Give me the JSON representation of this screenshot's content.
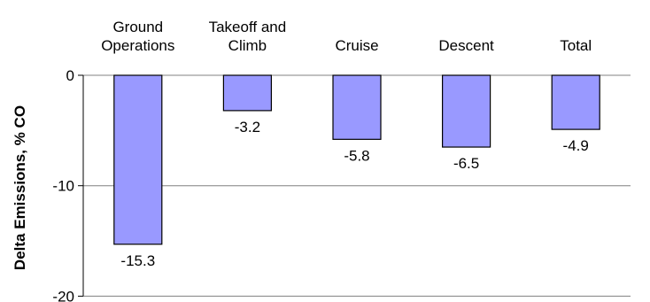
{
  "chart_data": {
    "type": "bar",
    "categories": [
      [
        "Ground",
        "Operations"
      ],
      [
        "Takeoff and",
        "Climb"
      ],
      [
        "Cruise"
      ],
      [
        "Descent"
      ],
      [
        "Total"
      ]
    ],
    "values": [
      -15.3,
      -3.2,
      -5.8,
      -6.5,
      -4.9
    ],
    "data_labels": [
      "-15.3",
      "-3.2",
      "-5.8",
      "-6.5",
      "-4.9"
    ],
    "title": "",
    "xlabel": "",
    "ylabel": "Delta Emissions, % CO",
    "ylim": [
      -20,
      0
    ],
    "yticks": [
      0,
      -10,
      -20
    ],
    "ytick_labels": [
      "0",
      "-10",
      "-20"
    ],
    "grid": "horizontal",
    "bar_color": "#9999ff",
    "category_labels_position": "top"
  }
}
